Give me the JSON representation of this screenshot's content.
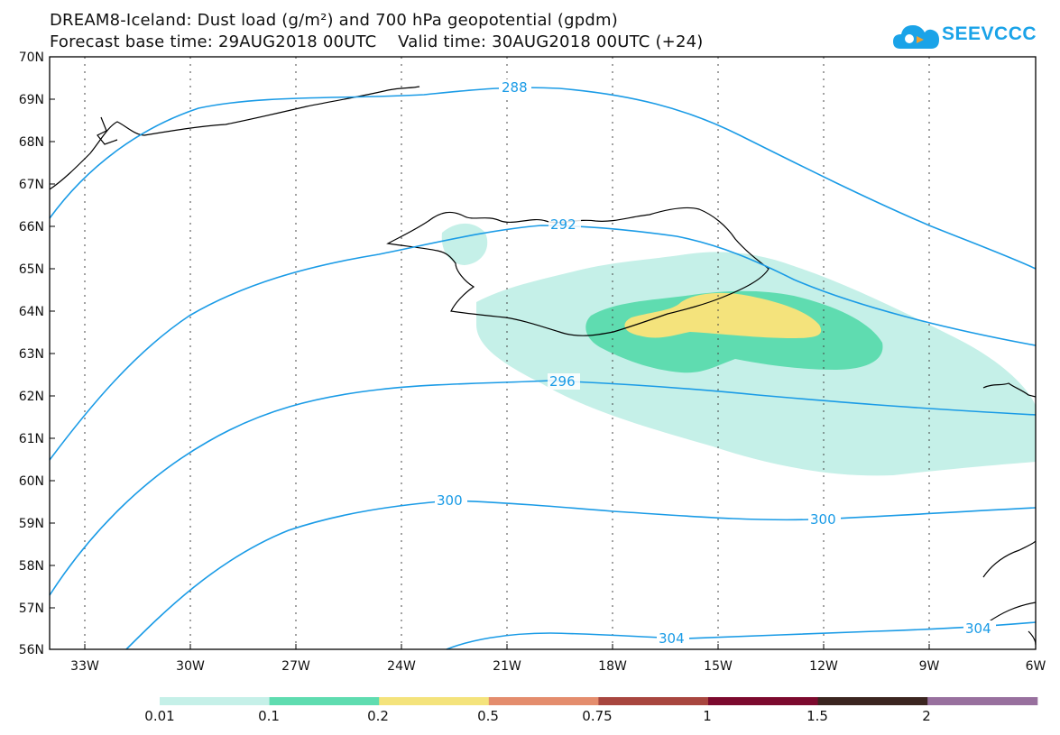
{
  "title": {
    "line1": "DREAM8-Iceland: Dust load (g/m²) and 700 hPa geopotential (gpdm)",
    "line2": "Forecast base time: 29AUG2018 00UTC    Valid time: 30AUG2018 00UTC (+24)"
  },
  "logo": {
    "text": "SEEVCCC",
    "icon": "cloud-icon",
    "color": "#1aa3e8"
  },
  "axes": {
    "lat_labels": [
      "70N",
      "69N",
      "68N",
      "67N",
      "66N",
      "65N",
      "64N",
      "63N",
      "62N",
      "61N",
      "60N",
      "59N",
      "58N",
      "57N",
      "56N"
    ],
    "lon_labels": [
      "33W",
      "30W",
      "27W",
      "24W",
      "21W",
      "18W",
      "15W",
      "12W",
      "9W",
      "6W"
    ]
  },
  "contours": {
    "color": "#1a9be6",
    "labels": [
      "288",
      "292",
      "296",
      "300",
      "300",
      "304",
      "304"
    ]
  },
  "colorbar": {
    "labels": [
      "0.01",
      "0.1",
      "0.2",
      "0.5",
      "0.75",
      "1",
      "1.5",
      "2"
    ],
    "colors": [
      "#c5f0e8",
      "#5fdcb0",
      "#f4e37c",
      "#e48d6d",
      "#a8463f",
      "#7c0a2e",
      "#3b2520",
      "#98709e"
    ]
  }
}
